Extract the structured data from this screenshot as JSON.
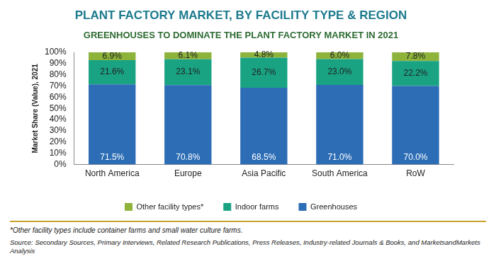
{
  "chart_data": {
    "type": "bar",
    "title": "PLANT FACTORY MARKET, BY FACILITY TYPE & REGION",
    "subtitle": "GREENHOUSES TO DOMINATE THE PLANT FACTORY MARKET IN 2021",
    "y_label": "Market Share (Value), 2021",
    "categories": [
      "North America",
      "Europe",
      "Asia Pacific",
      "South America",
      "RoW"
    ],
    "series": [
      {
        "name": "Greenhouses",
        "color": "#2c6db5",
        "values": [
          71.5,
          70.8,
          68.5,
          71.0,
          70.0
        ],
        "value_labels": [
          "71.5%",
          "70.8%",
          "68.5%",
          "71.0%",
          "70.0%"
        ]
      },
      {
        "name": "Indoor farms",
        "color": "#19a383",
        "values": [
          21.6,
          23.1,
          26.7,
          23.0,
          22.2
        ],
        "value_labels": [
          "21.6%",
          "23.1%",
          "26.7%",
          "23.0%",
          "22.2%"
        ]
      },
      {
        "name": "Other facility types*",
        "color": "#8db33b",
        "values": [
          6.9,
          6.1,
          4.8,
          6.0,
          7.8
        ],
        "value_labels": [
          "6.9%",
          "6.1%",
          "4.8%",
          "6.0%",
          "7.8%"
        ]
      }
    ],
    "ylim": [
      0,
      100
    ],
    "yticks": [
      {
        "value": 0,
        "label": "0%"
      },
      {
        "value": 10,
        "label": "10%"
      },
      {
        "value": 20,
        "label": "20%"
      },
      {
        "value": 30,
        "label": "30%"
      },
      {
        "value": 40,
        "label": "40%"
      },
      {
        "value": 50,
        "label": "50%"
      },
      {
        "value": 60,
        "label": "60%"
      },
      {
        "value": 70,
        "label": "70%"
      },
      {
        "value": 80,
        "label": "80%"
      },
      {
        "value": 90,
        "label": "90%"
      },
      {
        "value": 100,
        "label": "100%"
      }
    ],
    "stacked": true,
    "grid": false,
    "data_labels": true,
    "legend": "bottom",
    "footnote": "*Other facility types include container farms and small water culture farms.",
    "source": "Source: Secondary Sources, Primary Interviews, Related Research Publications, Press Releases, Industry-related Journals & Books, and MarketsandMarkets Analysis"
  }
}
